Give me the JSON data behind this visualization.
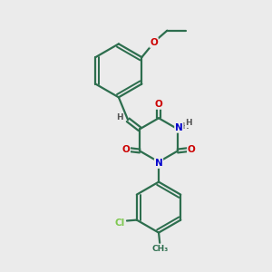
{
  "background_color": "#ebebeb",
  "bond_color": "#2d6e4e",
  "bond_width": 1.6,
  "atom_colors": {
    "O": "#cc0000",
    "N": "#0000cc",
    "Cl": "#7ec850",
    "C": "#2d6e4e",
    "H": "#555555"
  },
  "font_size_main": 7.5,
  "font_size_small": 6.5,
  "dbo": 0.055
}
